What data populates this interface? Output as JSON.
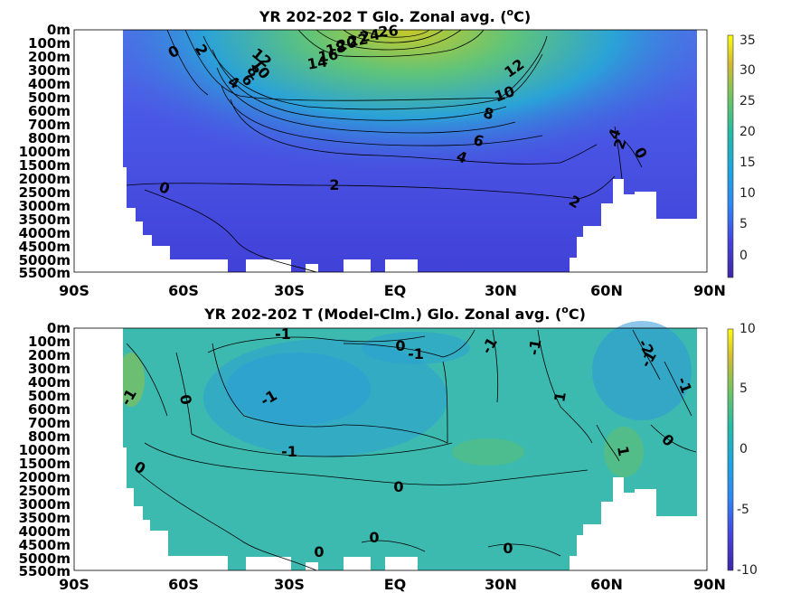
{
  "chart_data": [
    {
      "type": "heatmap",
      "title": "YR 202-202 T Glo. Zonal avg. (",
      "title_sup": "o",
      "title_end": "C)",
      "y_ticks": [
        "0m",
        "100m",
        "200m",
        "300m",
        "400m",
        "500m",
        "600m",
        "700m",
        "800m",
        "1000m",
        "1500m",
        "2000m",
        "2500m",
        "3000m",
        "3500m",
        "4000m",
        "4500m",
        "5000m",
        "5500m"
      ],
      "x_ticks": [
        "90S",
        "60S",
        "30S",
        "EQ",
        "30N",
        "60N",
        "90N"
      ],
      "x_values": [
        -90,
        -60,
        -30,
        0,
        30,
        60,
        90
      ],
      "colorbar": {
        "range": [
          -4,
          36
        ],
        "ticks": [
          0,
          5,
          10,
          15,
          20,
          25,
          30,
          35
        ]
      },
      "contour_labels": [
        "0",
        "2",
        "12",
        "10",
        "8",
        "6",
        "4",
        "16",
        "18",
        "20",
        "22",
        "24",
        "26",
        "14",
        "12",
        "10",
        "8",
        "6",
        "4",
        "2",
        "4",
        "2",
        "0",
        "2",
        "0"
      ]
    },
    {
      "type": "heatmap",
      "title": "YR 202-202 T (Model-Clm.) Glo. Zonal avg. (",
      "title_sup": "o",
      "title_end": "C)",
      "y_ticks": [
        "0m",
        "100m",
        "200m",
        "300m",
        "400m",
        "500m",
        "600m",
        "700m",
        "800m",
        "1000m",
        "1500m",
        "2000m",
        "2500m",
        "3000m",
        "3500m",
        "4000m",
        "4500m",
        "5000m",
        "5500m"
      ],
      "x_ticks": [
        "90S",
        "60S",
        "30S",
        "EQ",
        "30N",
        "60N",
        "90N"
      ],
      "x_values": [
        -90,
        -60,
        -30,
        0,
        30,
        60,
        90
      ],
      "colorbar": {
        "range": [
          -10,
          10
        ],
        "ticks": [
          -10,
          -5,
          0,
          5,
          10
        ]
      },
      "contour_labels": [
        "-1",
        "0",
        "-1",
        "1",
        "0",
        "-1",
        "-1",
        "0",
        "0",
        "0",
        "0",
        "0",
        "1",
        "-1",
        "-1",
        "0",
        "-1",
        "0",
        "-2",
        "-1",
        "-1",
        "1",
        "0"
      ]
    }
  ],
  "colors": {
    "land": "#ffffff",
    "parula_dark": "#3e26a8",
    "parula_blue": "#2e87f7",
    "parula_teal": "#24bca4",
    "parula_green": "#a7c431",
    "parula_yellow": "#f9fb0e"
  }
}
